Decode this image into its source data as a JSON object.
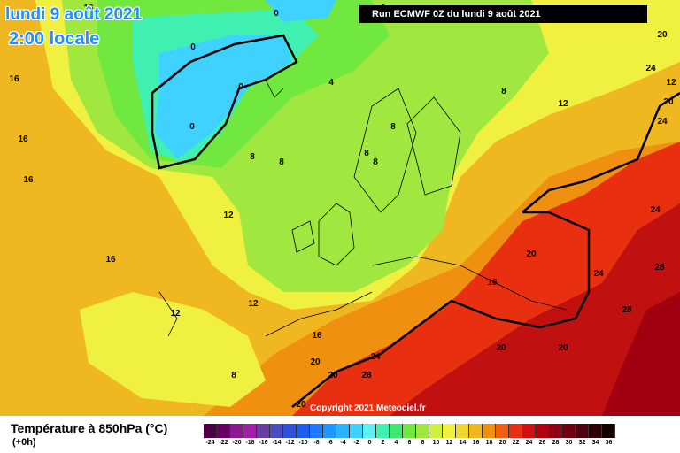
{
  "title": {
    "date": "lundi 9 août 2021",
    "time": "2:00 locale"
  },
  "run": "Run ECMWF 0Z du lundi 9 août 2021",
  "copyright": "Copyright 2021 Meteociel.fr",
  "legend": {
    "title": "Température à 850hPa (°C)",
    "subtitle": "(+0h)",
    "values": [
      "-24",
      "-22",
      "-20",
      "-18",
      "-16",
      "-14",
      "-12",
      "-10",
      "-8",
      "-6",
      "-4",
      "-2",
      "0",
      "2",
      "4",
      "6",
      "8",
      "10",
      "12",
      "14",
      "16",
      "18",
      "20",
      "22",
      "24",
      "26",
      "28",
      "30",
      "32",
      "34",
      "36"
    ],
    "colors": [
      "#4b0045",
      "#6a0066",
      "#8a1890",
      "#a020a8",
      "#6a3ca0",
      "#4a4cc0",
      "#3050d8",
      "#1e5cf0",
      "#1e78ff",
      "#1e96ff",
      "#28b4ff",
      "#40d2ff",
      "#60f0f0",
      "#40f0b0",
      "#40e870",
      "#70e840",
      "#a0e840",
      "#d0f040",
      "#f0f040",
      "#f0d830",
      "#f0b820",
      "#f09010",
      "#f06010",
      "#e83010",
      "#d01010",
      "#b00010",
      "#900010",
      "#700010",
      "#500010",
      "#300008",
      "#100000"
    ]
  },
  "contour_labels": [
    {
      "text": "16"
    },
    {
      "text": "16"
    },
    {
      "text": "16"
    },
    {
      "text": "16"
    },
    {
      "text": "16"
    },
    {
      "text": "16"
    },
    {
      "text": "16"
    },
    {
      "text": "12"
    },
    {
      "text": "12"
    },
    {
      "text": "12"
    },
    {
      "text": "12"
    },
    {
      "text": "12"
    },
    {
      "text": "8"
    },
    {
      "text": "8"
    },
    {
      "text": "8"
    },
    {
      "text": "8"
    },
    {
      "text": "8"
    },
    {
      "text": "8"
    },
    {
      "text": "8"
    },
    {
      "text": "4"
    },
    {
      "text": "4"
    },
    {
      "text": "0"
    },
    {
      "text": "0"
    },
    {
      "text": "0"
    },
    {
      "text": "0"
    },
    {
      "text": "20"
    },
    {
      "text": "20"
    },
    {
      "text": "20"
    },
    {
      "text": "20"
    },
    {
      "text": "20"
    },
    {
      "text": "20"
    },
    {
      "text": "20"
    },
    {
      "text": "20"
    },
    {
      "text": "24"
    },
    {
      "text": "24"
    },
    {
      "text": "24"
    },
    {
      "text": "24"
    },
    {
      "text": "24"
    },
    {
      "text": "28"
    },
    {
      "text": "28"
    },
    {
      "text": "28"
    }
  ]
}
